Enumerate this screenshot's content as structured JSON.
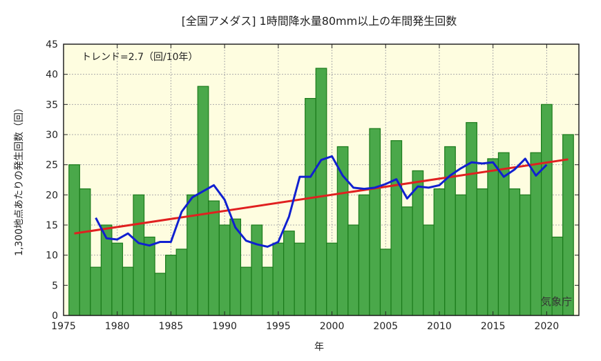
{
  "chart_data": {
    "type": "bar",
    "title": "[全国アメダス] 1時間降水量80mm以上の年間発生回数",
    "xlabel": "年",
    "ylabel": "1,300地点あたりの発生回数（回）",
    "annotation": "トレンド=2.7（回/10年）",
    "credit": "気象庁",
    "xlim": [
      1975,
      2023
    ],
    "ylim": [
      0,
      45
    ],
    "xticks": [
      1975,
      1980,
      1985,
      1990,
      1995,
      2000,
      2005,
      2010,
      2015,
      2020
    ],
    "yticks": [
      0,
      5,
      10,
      15,
      20,
      25,
      30,
      35,
      40,
      45
    ],
    "grid": true,
    "colors": {
      "bar": "#4aa84a",
      "bar_edge": "#1a7a1a",
      "moving_average": "#1020d0",
      "trend": "#e02020",
      "plot_bg": "#fefde0"
    },
    "x": [
      1976,
      1977,
      1978,
      1979,
      1980,
      1981,
      1982,
      1983,
      1984,
      1985,
      1986,
      1987,
      1988,
      1989,
      1990,
      1991,
      1992,
      1993,
      1994,
      1995,
      1996,
      1997,
      1998,
      1999,
      2000,
      2001,
      2002,
      2003,
      2004,
      2005,
      2006,
      2007,
      2008,
      2009,
      2010,
      2011,
      2012,
      2013,
      2014,
      2015,
      2016,
      2017,
      2018,
      2019,
      2020,
      2021,
      2022
    ],
    "values": [
      25,
      21,
      8,
      15,
      12,
      8,
      20,
      13,
      7,
      10,
      11,
      20,
      38,
      19,
      15,
      16,
      8,
      15,
      8,
      12,
      14,
      12,
      36,
      41,
      12,
      28,
      15,
      20,
      31,
      11,
      29,
      18,
      24,
      15,
      21,
      28,
      20,
      32,
      21,
      26,
      27,
      21,
      20,
      27,
      35,
      13,
      30
    ],
    "moving_average": {
      "x": [
        1978,
        1979,
        1980,
        1981,
        1982,
        1983,
        1984,
        1985,
        1986,
        1987,
        1988,
        1989,
        1990,
        1991,
        1992,
        1993,
        1994,
        1995,
        1996,
        1997,
        1998,
        1999,
        2000,
        2001,
        2002,
        2003,
        2004,
        2005,
        2006,
        2007,
        2008,
        2009,
        2010,
        2011,
        2012,
        2013,
        2014,
        2015,
        2016,
        2017,
        2018,
        2019,
        2020
      ],
      "values": [
        16.2,
        12.8,
        12.6,
        13.6,
        12.0,
        11.6,
        12.2,
        12.2,
        17.2,
        19.6,
        20.6,
        21.6,
        19.2,
        14.6,
        12.4,
        11.8,
        11.4,
        12.2,
        16.4,
        23.0,
        23.0,
        25.8,
        26.4,
        23.2,
        21.2,
        21.0,
        21.2,
        21.8,
        22.6,
        19.4,
        21.4,
        21.2,
        21.6,
        23.2,
        24.4,
        25.4,
        25.2,
        25.4,
        23.0,
        24.2,
        26.0,
        23.2,
        25.0
      ]
    },
    "trend": {
      "x": [
        1976,
        2022
      ],
      "values": [
        13.6,
        25.9
      ]
    }
  }
}
